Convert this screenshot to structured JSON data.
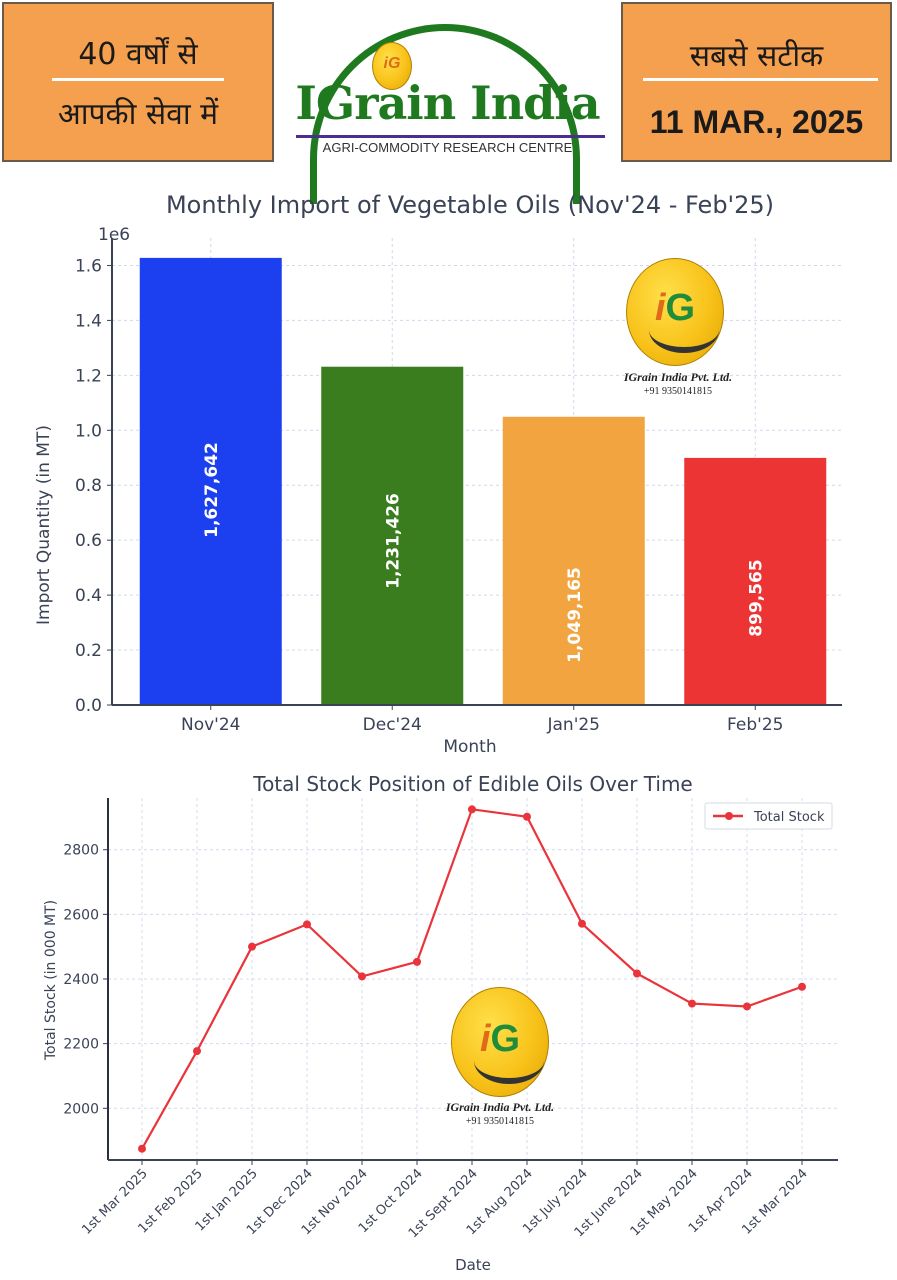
{
  "header": {
    "left_line1": "40 वर्षों से",
    "left_line2": "आपकी सेवा में",
    "brand_name": "IGrain India",
    "brand_tagline": "AGRI-COMMODITY RESEARCH CENTRE",
    "brand_badge": "iG",
    "right_line1": "सबसे सटीक",
    "right_date": "11 MAR., 2025"
  },
  "watermark": {
    "company": "IGrain India Pvt. Ltd.",
    "phone": "+91 9350141815",
    "badge": "iG"
  },
  "chart_data": [
    {
      "type": "bar",
      "title": "Monthly Import of Vegetable Oils (Nov'24 - Feb'25)",
      "xlabel": "Month",
      "ylabel": "Import Quantity (in MT)",
      "y_offset_label": "1e6",
      "categories": [
        "Nov'24",
        "Dec'24",
        "Jan'25",
        "Feb'25"
      ],
      "values": [
        1627642,
        1231426,
        1049165,
        899565
      ],
      "value_labels": [
        "1,627,642",
        "1,231,426",
        "1,049,165",
        "899,565"
      ],
      "colors": [
        "#1C3FF0",
        "#3A7D1E",
        "#F2A440",
        "#EC3434"
      ],
      "ylim": [
        0,
        1700000
      ],
      "yticks": [
        0,
        200000,
        400000,
        600000,
        800000,
        1000000,
        1200000,
        1400000,
        1600000
      ],
      "ytick_labels": [
        "0.0",
        "0.2",
        "0.4",
        "0.6",
        "0.8",
        "1.0",
        "1.2",
        "1.4",
        "1.6"
      ],
      "grid": true
    },
    {
      "type": "line",
      "title": "Total Stock Position of Edible Oils Over Time",
      "xlabel": "Date",
      "ylabel": "Total Stock (in 000 MT)",
      "x": [
        "1st Mar 2025",
        "1st Feb 2025",
        "1st Jan 2025",
        "1st Dec 2024",
        "1st Nov 2024",
        "1st Oct 2024",
        "1st Sept 2024",
        "1st Aug 2024",
        "1st July 2024",
        "1st June 2024",
        "1st May 2024",
        "1st Apr 2024",
        "1st Mar 2024"
      ],
      "series": [
        {
          "name": "Total Stock",
          "color": "#E8343A",
          "values": [
            1875,
            2177,
            2500,
            2569,
            2408,
            2453,
            2925,
            2902,
            2571,
            2417,
            2324,
            2315,
            2376
          ]
        }
      ],
      "ylim": [
        1840,
        2960
      ],
      "yticks": [
        2000,
        2200,
        2400,
        2600,
        2800
      ],
      "ytick_labels": [
        "2000",
        "2200",
        "2400",
        "2600",
        "2800"
      ],
      "legend": "top-right",
      "grid": true
    }
  ]
}
